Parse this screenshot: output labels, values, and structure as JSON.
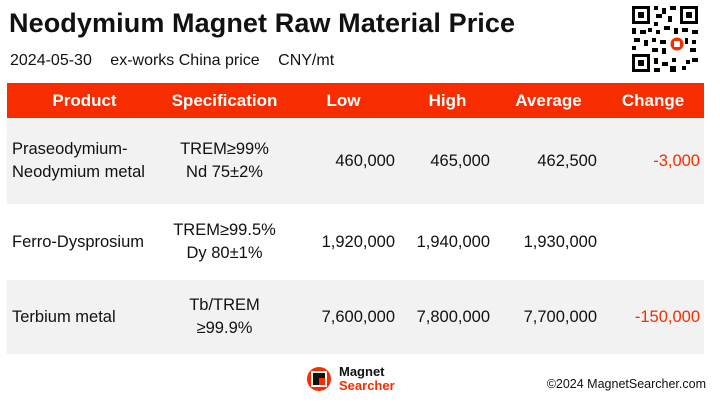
{
  "header": {
    "title": "Neodymium Magnet Raw Material Price",
    "date": "2024-05-30",
    "basis": "ex-works China price",
    "unit": "CNY/mt"
  },
  "table": {
    "columns": [
      "Product",
      "Specification",
      "Low",
      "High",
      "Average",
      "Change"
    ],
    "rows": [
      {
        "product_line1": "Praseodymium-",
        "product_line2": "Neodymium metal",
        "spec_line1": "TREM≥99%",
        "spec_line2": "Nd 75±2%",
        "low": "460,000",
        "high": "465,000",
        "average": "462,500",
        "change": "-3,000"
      },
      {
        "product_line1": "Ferro-Dysprosium",
        "product_line2": "",
        "spec_line1": "TREM≥99.5%",
        "spec_line2": "Dy 80±1%",
        "low": "1,920,000",
        "high": "1,940,000",
        "average": "1,930,000",
        "change": ""
      },
      {
        "product_line1": "Terbium metal",
        "product_line2": "",
        "spec_line1": "Tb/TREM",
        "spec_line2": "≥99.9%",
        "low": "7,600,000",
        "high": "7,800,000",
        "average": "7,700,000",
        "change": "-150,000"
      }
    ]
  },
  "footer": {
    "logo_line1": "Magnet",
    "logo_line2": "Searcher",
    "copyright": "©2024 MagnetSearcher.com"
  },
  "colors": {
    "accent": "#f72d00",
    "row_shade": "#f2f2f2"
  },
  "icons": {
    "qr": "qr-code-icon",
    "logo": "magnet-searcher-logo-icon"
  }
}
